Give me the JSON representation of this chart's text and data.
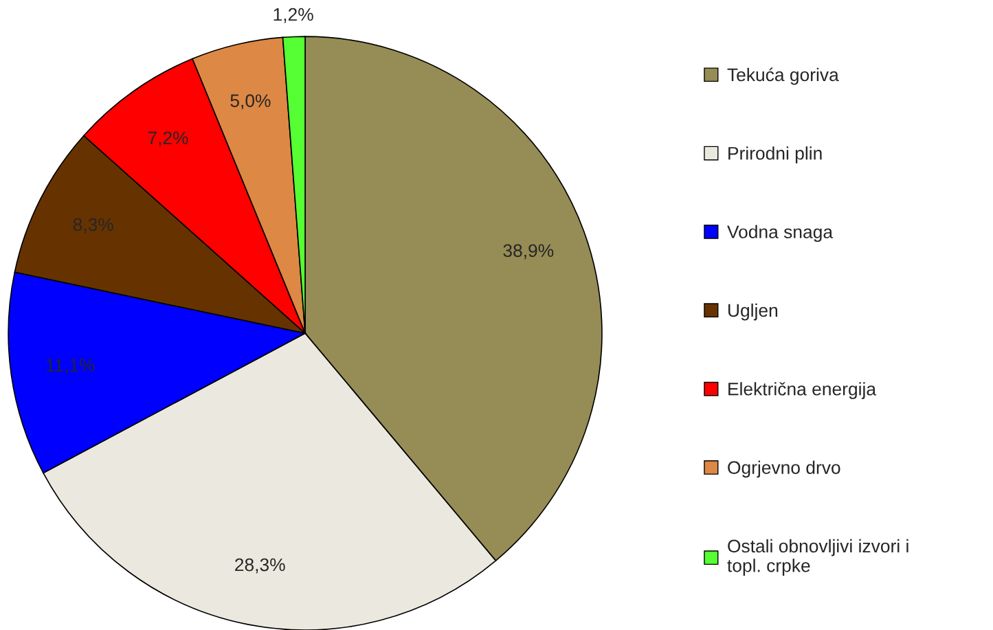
{
  "chart_data": {
    "type": "pie",
    "categories": [
      "Tekuća goriva",
      "Prirodni plin",
      "Vodna snaga",
      "Ugljen",
      "Električna energija",
      "Ogrjevno drvo",
      "Ostali obnovljivi izvori i\ntopl. crpke"
    ],
    "values": [
      38.9,
      28.3,
      11.1,
      8.3,
      7.2,
      5.0,
      1.2
    ],
    "value_labels": [
      "38,9%",
      "28,3%",
      "11,1%",
      "8,3%",
      "7,2%",
      "5,0%",
      "1,2%"
    ],
    "colors": [
      "#968c55",
      "#ebe9df",
      "#0000ff",
      "#663300",
      "#ff0000",
      "#dd8844",
      "#55ff33"
    ],
    "legend": "right"
  }
}
